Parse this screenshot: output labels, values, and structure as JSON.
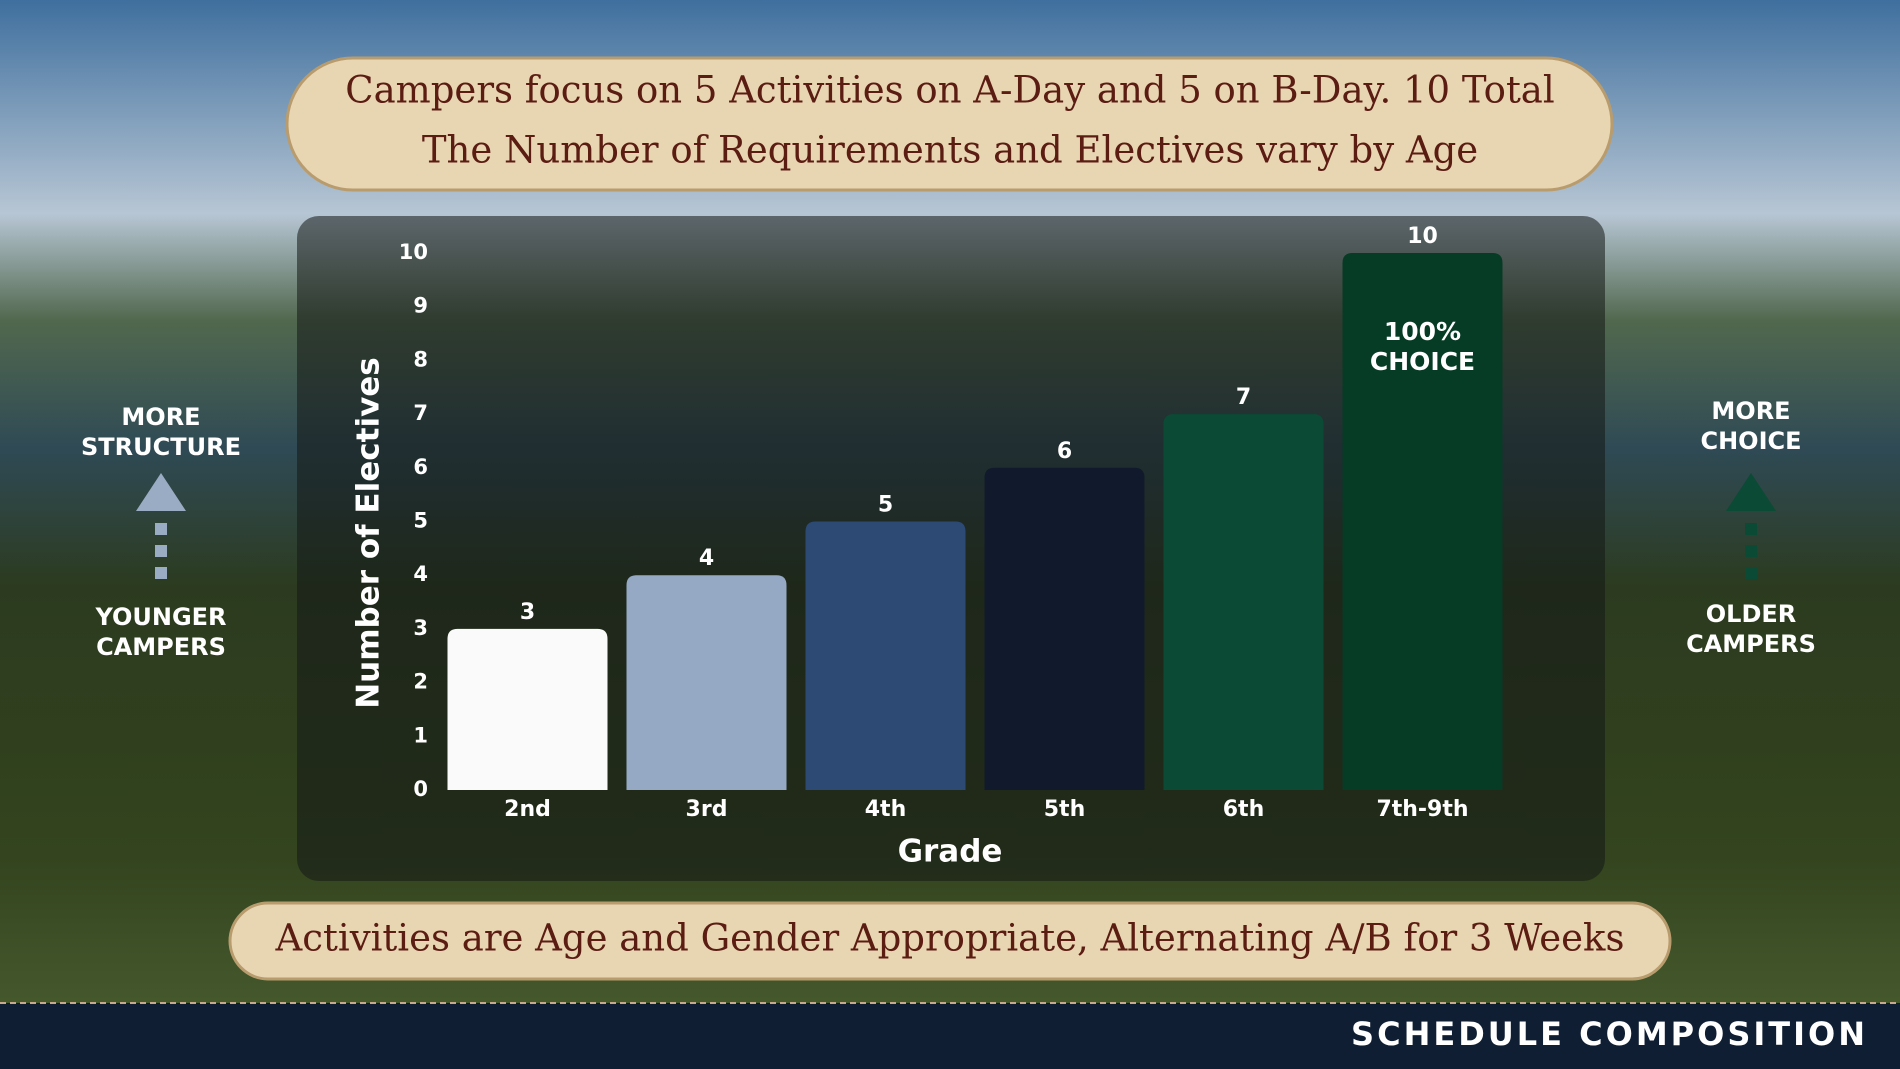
{
  "chart_data": {
    "type": "bar",
    "title": [
      "Campers focus on 5 Activities on A-Day and 5 on B-Day. 10 Total",
      "The Number of Requirements and Electives vary by Age"
    ],
    "footnote": "Activities are Age and Gender Appropriate, Alternating A/B for 3 Weeks",
    "categories": [
      "2nd",
      "3rd",
      "4th",
      "5th",
      "6th",
      "7th-9th"
    ],
    "values": [
      3,
      4,
      5,
      6,
      7,
      10
    ],
    "colors": [
      "#fafafa",
      "#95a9c5",
      "#2c4a74",
      "#101a2c",
      "#0b4a35",
      "#063b25"
    ],
    "annotation": [
      "100%",
      "CHOICE"
    ],
    "xlabel": "Grade",
    "ylabel": "Number of Electives",
    "ylim": [
      0,
      10
    ],
    "yticks": [
      0,
      1,
      2,
      3,
      4,
      5,
      6,
      7,
      8,
      9,
      10
    ]
  },
  "side_labels": {
    "left_top": [
      "MORE",
      "STRUCTURE"
    ],
    "left_bottom": [
      "YOUNGER",
      "CAMPERS"
    ],
    "right_top": [
      "MORE",
      "CHOICE"
    ],
    "right_bottom": [
      "OLDER",
      "CAMPERS"
    ]
  },
  "footer": "SCHEDULE COMPOSITION"
}
